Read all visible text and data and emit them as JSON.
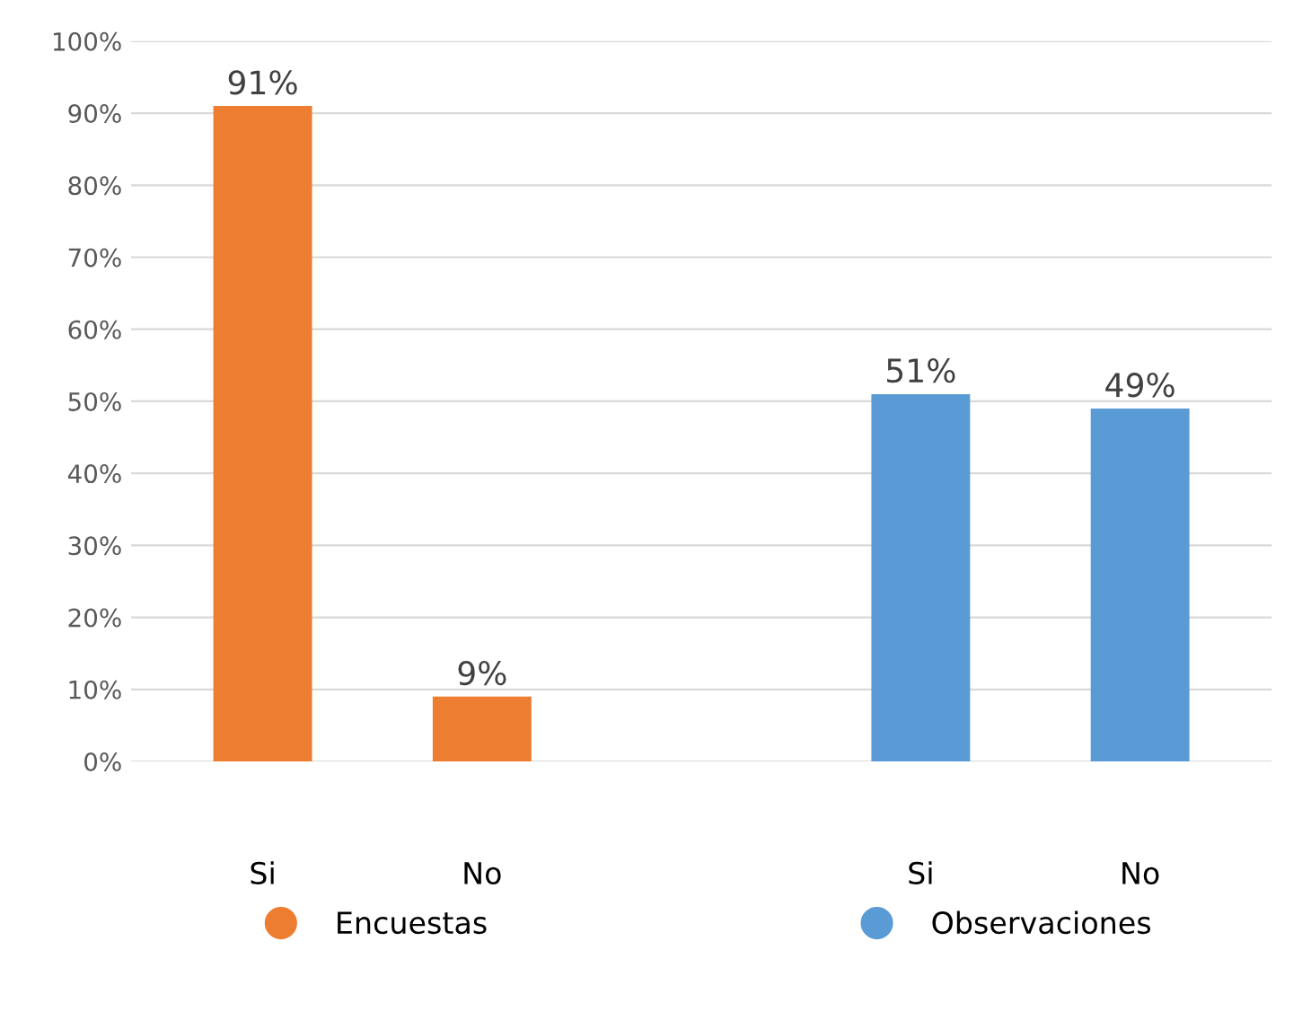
{
  "chart_data": {
    "type": "bar",
    "categories": [
      "Si",
      "No",
      null,
      "Si",
      "No"
    ],
    "series": [
      {
        "name": "Encuestas",
        "color": "#ed7d31",
        "values": [
          91,
          9,
          null,
          null,
          null
        ],
        "value_labels": [
          "91%",
          "9%",
          null,
          null,
          null
        ]
      },
      {
        "name": "Observaciones",
        "color": "#5b9bd5",
        "values": [
          null,
          null,
          null,
          51,
          49
        ],
        "value_labels": [
          null,
          null,
          null,
          "51%",
          "49%"
        ]
      }
    ],
    "ylim": [
      0,
      100
    ],
    "yticks": [
      {
        "value": 0,
        "label": "0%"
      },
      {
        "value": 10,
        "label": "10%"
      },
      {
        "value": 20,
        "label": "20%"
      },
      {
        "value": 30,
        "label": "30%"
      },
      {
        "value": 40,
        "label": "40%"
      },
      {
        "value": 50,
        "label": "50%"
      },
      {
        "value": 60,
        "label": "60%"
      },
      {
        "value": 70,
        "label": "70%"
      },
      {
        "value": 80,
        "label": "80%"
      },
      {
        "value": 90,
        "label": "90%"
      },
      {
        "value": 100,
        "label": "100%"
      }
    ],
    "grid": "y",
    "legend": "bottom"
  }
}
